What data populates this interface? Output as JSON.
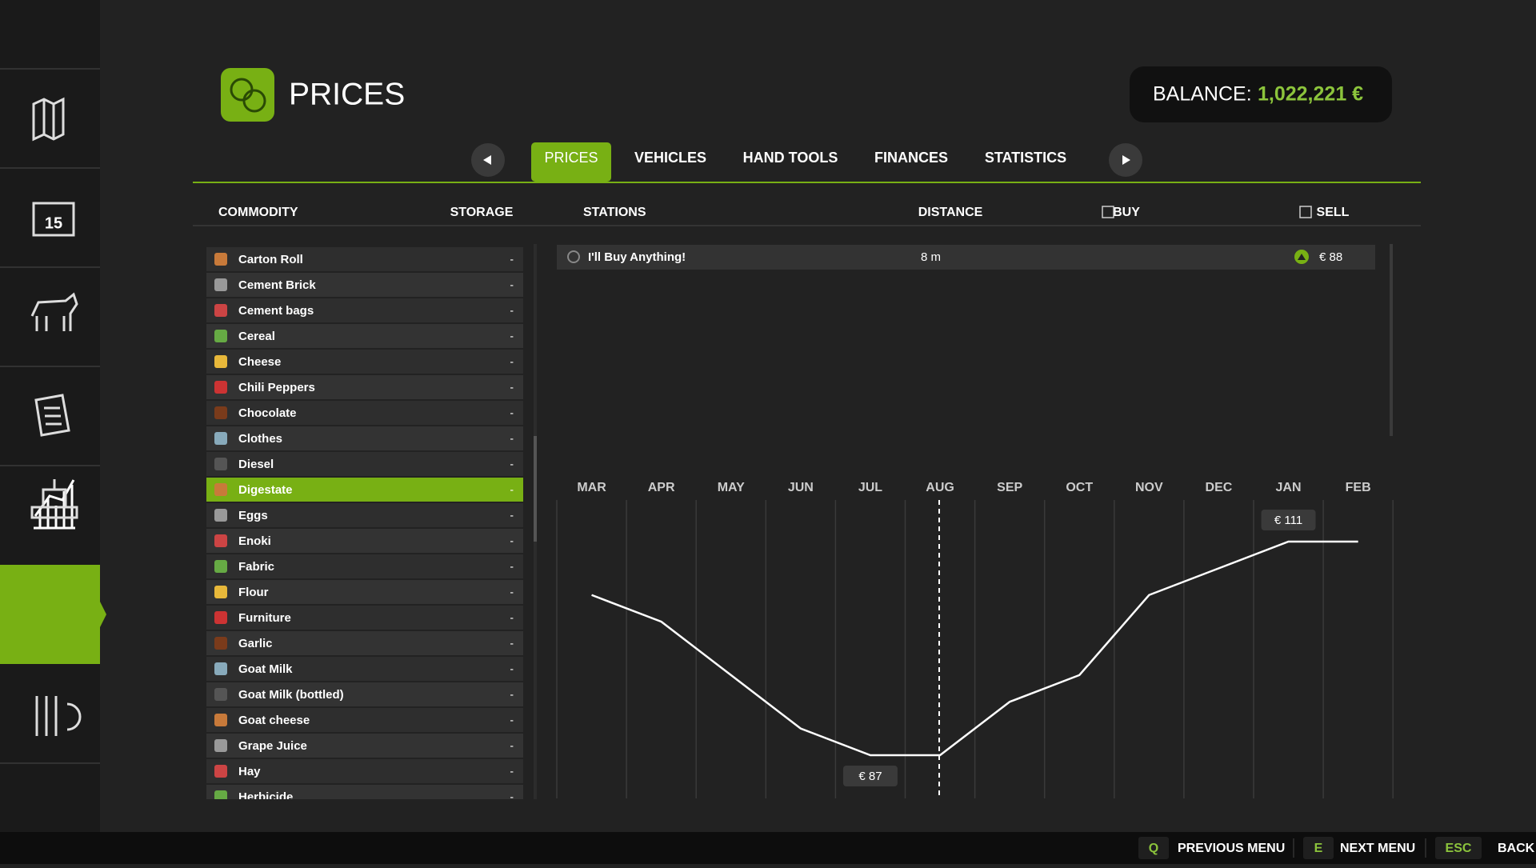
{
  "header": {
    "title": "PRICES",
    "balance_label": "BALANCE:",
    "balance_value": "1,022,221 €"
  },
  "tabs": [
    {
      "label": "PRICES",
      "active": true
    },
    {
      "label": "VEHICLES"
    },
    {
      "label": "HAND TOOLS"
    },
    {
      "label": "FINANCES"
    },
    {
      "label": "STATISTICS"
    }
  ],
  "columns": {
    "commodity": "COMMODITY",
    "storage": "STORAGE",
    "stations": "STATIONS",
    "distance": "DISTANCE",
    "buy": "BUY",
    "sell": "SELL"
  },
  "commodities": [
    {
      "name": "Carton Roll",
      "storage": "-"
    },
    {
      "name": "Cement Brick",
      "storage": "-"
    },
    {
      "name": "Cement bags",
      "storage": "-"
    },
    {
      "name": "Cereal",
      "storage": "-"
    },
    {
      "name": "Cheese",
      "storage": "-"
    },
    {
      "name": "Chili Peppers",
      "storage": "-"
    },
    {
      "name": "Chocolate",
      "storage": "-"
    },
    {
      "name": "Clothes",
      "storage": "-"
    },
    {
      "name": "Diesel",
      "storage": "-"
    },
    {
      "name": "Digestate",
      "storage": "-",
      "selected": true
    },
    {
      "name": "Eggs",
      "storage": "-"
    },
    {
      "name": "Enoki",
      "storage": "-"
    },
    {
      "name": "Fabric",
      "storage": "-"
    },
    {
      "name": "Flour",
      "storage": "-"
    },
    {
      "name": "Furniture",
      "storage": "-"
    },
    {
      "name": "Garlic",
      "storage": "-"
    },
    {
      "name": "Goat Milk",
      "storage": "-"
    },
    {
      "name": "Goat Milk (bottled)",
      "storage": "-"
    },
    {
      "name": "Goat cheese",
      "storage": "-"
    },
    {
      "name": "Grape Juice",
      "storage": "-"
    },
    {
      "name": "Hay",
      "storage": "-"
    },
    {
      "name": "Herbicide",
      "storage": "-"
    }
  ],
  "stations": [
    {
      "name": "I'll Buy Anything!",
      "distance": "8 m",
      "sell": "€ 88"
    }
  ],
  "chart_data": {
    "type": "line",
    "categories": [
      "MAR",
      "APR",
      "MAY",
      "JUN",
      "JUL",
      "AUG",
      "SEP",
      "OCT",
      "NOV",
      "DEC",
      "JAN",
      "FEB"
    ],
    "values": [
      105,
      102,
      96,
      90,
      87,
      87,
      93,
      96,
      105,
      108,
      111,
      111
    ],
    "value_labels": [
      null,
      null,
      null,
      null,
      "€ 87",
      null,
      null,
      null,
      null,
      null,
      "€ 111",
      null
    ],
    "color": "#ffffff"
  },
  "footer": [
    {
      "key": "Q",
      "label": "PREVIOUS MENU"
    },
    {
      "key": "E",
      "label": "NEXT MENU"
    },
    {
      "key": "ESC",
      "label": "BACK"
    }
  ]
}
